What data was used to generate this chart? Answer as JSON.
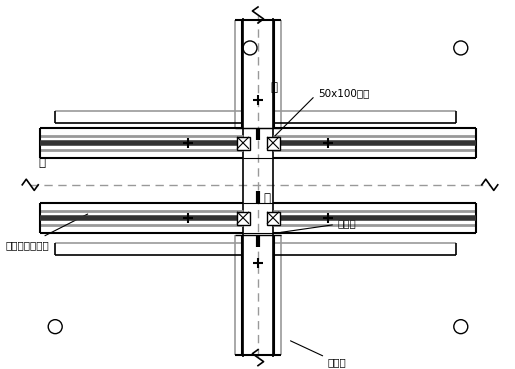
{
  "bg_color": "#ffffff",
  "line_color": "#000000",
  "gray_color": "#999999",
  "dark_color": "#333333",
  "dashed_color": "#999999",
  "labels": {
    "beam_top": "梁",
    "beam_left": "梁",
    "column": "柱",
    "wood": "50x100木方",
    "bamboo": "竹胶板",
    "steel_tube": "钉管架",
    "adjustable": "可调托支撑加固"
  }
}
